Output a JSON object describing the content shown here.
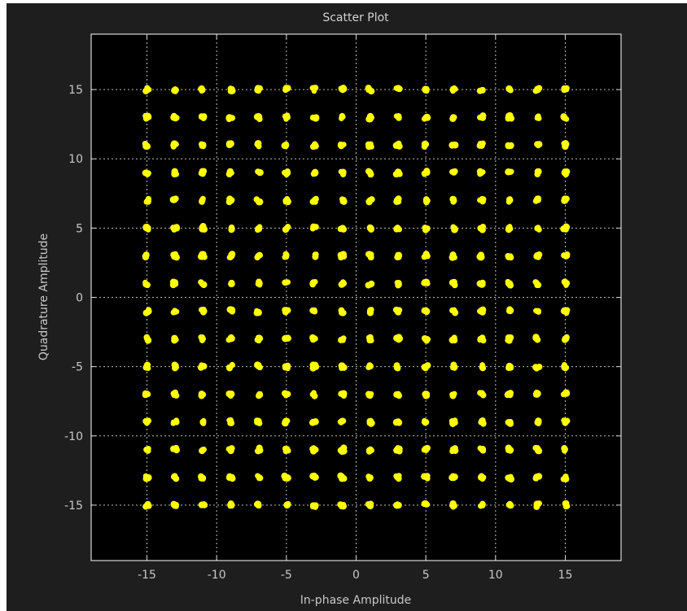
{
  "chart_data": {
    "type": "scatter",
    "title": "Scatter Plot",
    "xlabel": "In-phase Amplitude",
    "ylabel": "Quadrature Amplitude",
    "xlim": [
      -19,
      19
    ],
    "ylim": [
      -19,
      19
    ],
    "xticks": [
      -15,
      -10,
      -5,
      0,
      5,
      10,
      15
    ],
    "yticks": [
      -15,
      -10,
      -5,
      0,
      5,
      10,
      15
    ],
    "grid": true,
    "constellation_levels": [
      -15,
      -13,
      -11,
      -9,
      -7,
      -5,
      -3,
      -1,
      1,
      3,
      5,
      7,
      9,
      11,
      13,
      15
    ],
    "series": [
      {
        "values_note": "",
        "marker_color": "#ffff00"
      }
    ],
    "colors": {
      "figure_background": "#1e1e1e",
      "axes_background": "#000000",
      "axes_border": "#d8d8d8",
      "grid": "#bdbdbd",
      "text": "#c8c8c8",
      "marker": "#ffff00"
    }
  }
}
